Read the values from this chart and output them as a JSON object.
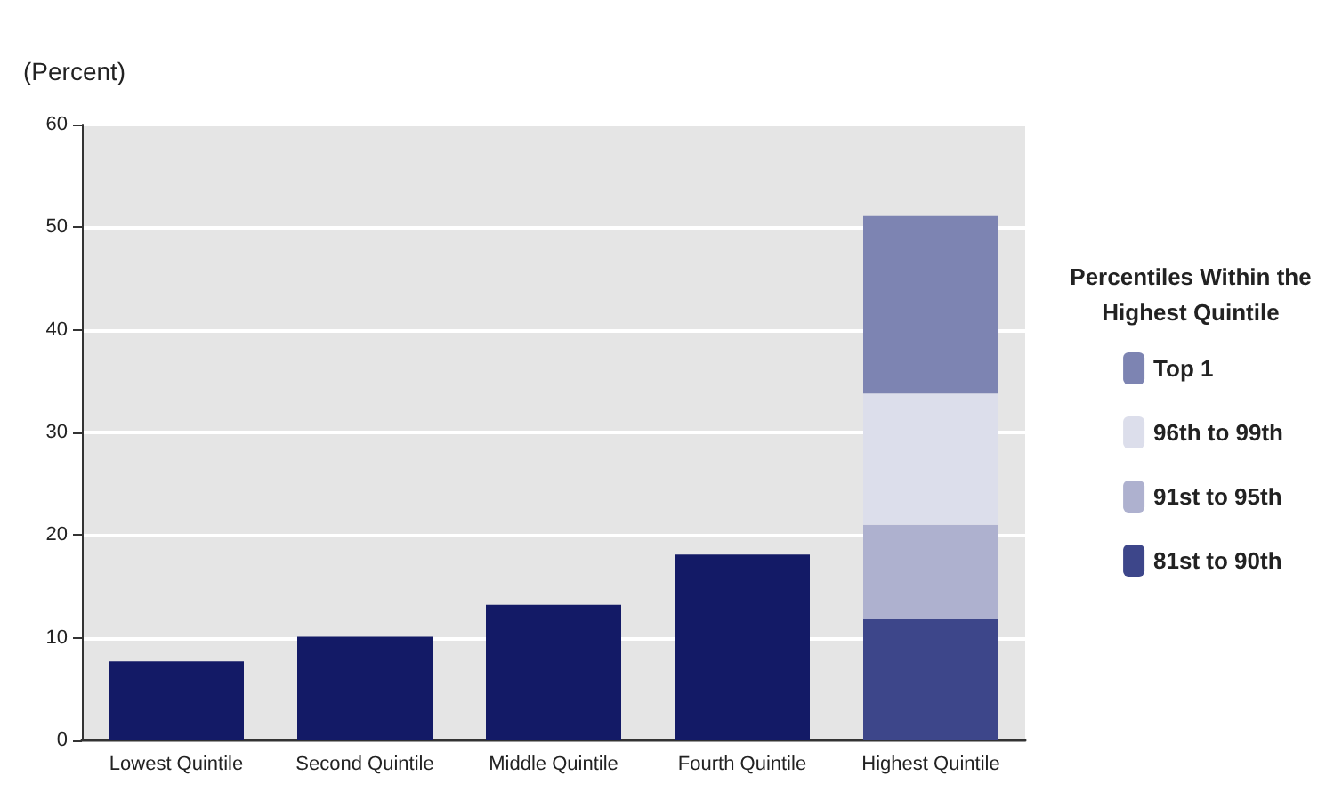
{
  "chart_data": {
    "type": "bar",
    "ylabel": "(Percent)",
    "legend_title": "Percentiles Within the Highest Quintile",
    "categories": [
      "Lowest Quintile",
      "Second Quintile",
      "Middle Quintile",
      "Fourth Quintile",
      "Highest Quintile"
    ],
    "stacked": true,
    "series": [
      {
        "color": "#131a66",
        "values": [
          7.7,
          10.1,
          13.2,
          18.1,
          null
        ]
      },
      {
        "name": "81st to 90th",
        "color": "#3d468a",
        "values": [
          null,
          null,
          null,
          null,
          11.8
        ]
      },
      {
        "name": "91st to 95th",
        "color": "#aeb1cf",
        "values": [
          null,
          null,
          null,
          null,
          9.2
        ]
      },
      {
        "name": "96th to 99th",
        "color": "#dcdeeb",
        "values": [
          null,
          null,
          null,
          null,
          12.8
        ]
      },
      {
        "name": "Top 1",
        "color": "#7d84b2",
        "values": [
          null,
          null,
          null,
          null,
          17.3
        ]
      }
    ],
    "ylim": [
      0,
      60
    ],
    "yticks": [
      0,
      10,
      20,
      30,
      40,
      50,
      60
    ],
    "grid": "y",
    "legend": "right"
  }
}
